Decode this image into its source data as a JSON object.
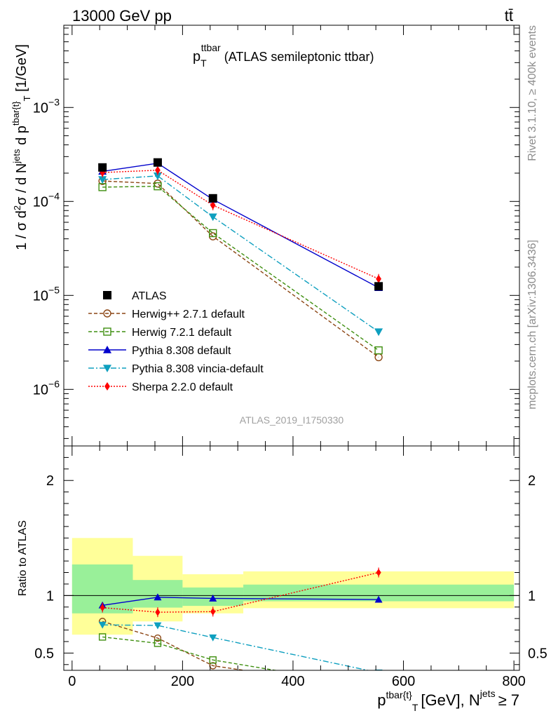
{
  "header": {
    "left": "13000 GeV pp",
    "right": "tt̄"
  },
  "side_labels": {
    "rivet": "Rivet 3.1.10, ≥ 400k events",
    "mcplots": "mcplots.cern.ch [arXiv:1306.3436]"
  },
  "chart_data": [
    {
      "type": "line",
      "title": {
        "base": "p",
        "sup": "ttbar",
        "sub": "T",
        "rest": "(ATLAS semileptonic ttbar)"
      },
      "ylabel": "1 / σ d²σ / d N^jets d p^tbar{t}_T [1/GeV]",
      "yscale": "log",
      "ylim": [
        2.5e-07,
        0.0075
      ],
      "xlim": [
        -15,
        810
      ],
      "ytick_labels": [
        {
          "value": 0.001,
          "mant": "10",
          "exp": "−3"
        },
        {
          "value": 0.0001,
          "mant": "10",
          "exp": "−4"
        },
        {
          "value": 1e-05,
          "mant": "10",
          "exp": "−5"
        },
        {
          "value": 1e-06,
          "mant": "10",
          "exp": "−6"
        }
      ],
      "stamp": "ATLAS_2019_I1750330",
      "data_series": {
        "name": "ATLAS",
        "x": [
          55,
          155,
          255,
          555
        ],
        "y": [
          0.00023,
          0.00026,
          0.000108,
          1.25e-05
        ]
      },
      "mc_series": [
        {
          "name": "Herwig++ 2.7.1 default",
          "color": "#8b4513",
          "marker": "circle-open",
          "dash": "5,3",
          "x": [
            55,
            155,
            255,
            555
          ],
          "y": [
            0.000165,
            0.000155,
            4.25e-05,
            2.2e-06
          ]
        },
        {
          "name": "Herwig 7.2.1 default",
          "color": "#3f8f10",
          "marker": "square-open",
          "dash": "5,3",
          "x": [
            55,
            155,
            255,
            555
          ],
          "y": [
            0.000142,
            0.000145,
            4.6e-05,
            2.6e-06
          ]
        },
        {
          "name": "Pythia 8.308 default",
          "color": "#0000cc",
          "marker": "triangle-up",
          "dash": "",
          "x": [
            55,
            155,
            255,
            555
          ],
          "y": [
            0.000209,
            0.000255,
            0.000105,
            1.21e-05
          ]
        },
        {
          "name": "Pythia 8.308 vincia-default",
          "color": "#0e9fbf",
          "marker": "triangle-down",
          "dash": "8,3,2,3",
          "x": [
            55,
            155,
            255,
            555
          ],
          "y": [
            0.000171,
            0.000187,
            6.85e-05,
            4.1e-06
          ]
        },
        {
          "name": "Sherpa 2.2.0 default",
          "color": "#ff0000",
          "marker": "diamond",
          "dash": "2,2",
          "x": [
            55,
            155,
            255,
            555
          ],
          "y": [
            0.000203,
            0.000215,
            9.1e-05,
            1.5e-05
          ]
        }
      ]
    },
    {
      "type": "line",
      "ylabel": "Ratio to ATLAS",
      "ylim": [
        0.35,
        2.3
      ],
      "xlim": [
        -15,
        810
      ],
      "yticks": [
        0.5,
        1,
        2
      ],
      "ytick_labels": [
        "0.5",
        "1",
        "2"
      ],
      "xticks": [
        0,
        200,
        400,
        600,
        800
      ],
      "xtick_labels": [
        "0",
        "200",
        "400",
        "600",
        "800"
      ],
      "xlabel": {
        "base": "p",
        "sup": "tbar{t}",
        "sub": "T",
        "unit": "[GeV], N",
        "sup2": "jets",
        "tail": "≥ 7"
      },
      "bins": [
        {
          "lo": 0,
          "hi": 110,
          "inner": [
            0.845,
            1.27
          ],
          "outer": [
            0.66,
            1.5
          ]
        },
        {
          "lo": 110,
          "hi": 200,
          "inner": [
            0.895,
            1.135
          ],
          "outer": [
            0.775,
            1.345
          ]
        },
        {
          "lo": 200,
          "hi": 310,
          "inner": [
            0.91,
            1.07
          ],
          "outer": [
            0.845,
            1.185
          ]
        },
        {
          "lo": 310,
          "hi": 800,
          "inner": [
            0.95,
            1.095
          ],
          "outer": [
            0.89,
            1.21
          ]
        }
      ],
      "mc_series": [
        {
          "name": "Herwig++ 2.7.1 default",
          "x": [
            55,
            155,
            255,
            555
          ],
          "y": [
            0.775,
            0.63,
            0.39,
            0.176
          ]
        },
        {
          "name": "Herwig 7.2.1 default",
          "x": [
            55,
            155,
            255,
            555
          ],
          "y": [
            0.64,
            0.585,
            0.44,
            0.2
          ]
        },
        {
          "name": "Pythia 8.308 default",
          "x": [
            55,
            155,
            255,
            555
          ],
          "y": [
            0.915,
            0.985,
            0.975,
            0.965
          ]
        },
        {
          "name": "Pythia 8.308 vincia-default",
          "x": [
            55,
            155,
            255,
            555
          ],
          "y": [
            0.745,
            0.74,
            0.635,
            0.33
          ]
        },
        {
          "name": "Sherpa 2.2.0 default",
          "x": [
            55,
            155,
            255,
            555
          ],
          "y": [
            0.895,
            0.855,
            0.86,
            1.2
          ]
        }
      ]
    }
  ]
}
